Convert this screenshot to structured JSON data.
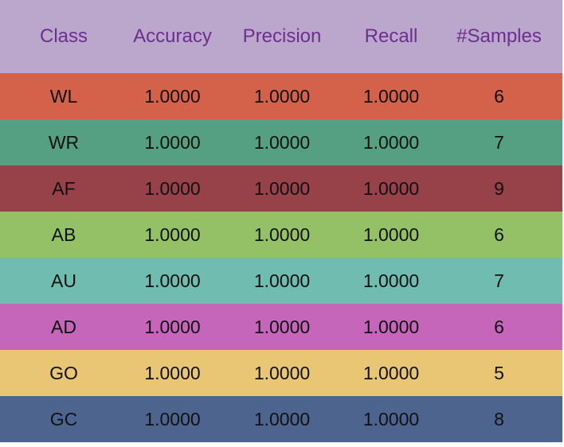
{
  "chart_data": {
    "type": "table",
    "columns": [
      "Class",
      "Accuracy",
      "Precision",
      "Recall",
      "#Samples"
    ],
    "rows": [
      {
        "class": "WL",
        "accuracy": "1.0000",
        "precision": "1.0000",
        "recall": "1.0000",
        "samples": "6",
        "color": "#d4614a"
      },
      {
        "class": "WR",
        "accuracy": "1.0000",
        "precision": "1.0000",
        "recall": "1.0000",
        "samples": "7",
        "color": "#55a083"
      },
      {
        "class": "AF",
        "accuracy": "1.0000",
        "precision": "1.0000",
        "recall": "1.0000",
        "samples": "9",
        "color": "#974149"
      },
      {
        "class": "AB",
        "accuracy": "1.0000",
        "precision": "1.0000",
        "recall": "1.0000",
        "samples": "6",
        "color": "#95c166"
      },
      {
        "class": "AU",
        "accuracy": "1.0000",
        "precision": "1.0000",
        "recall": "1.0000",
        "samples": "7",
        "color": "#71bcb0"
      },
      {
        "class": "AD",
        "accuracy": "1.0000",
        "precision": "1.0000",
        "recall": "1.0000",
        "samples": "6",
        "color": "#c566bb"
      },
      {
        "class": "GO",
        "accuracy": "1.0000",
        "precision": "1.0000",
        "recall": "1.0000",
        "samples": "5",
        "color": "#e8c673"
      },
      {
        "class": "GC",
        "accuracy": "1.0000",
        "precision": "1.0000",
        "recall": "1.0000",
        "samples": "8",
        "color": "#4d648f"
      }
    ],
    "header_background": "#bba6cc",
    "header_text_color": "#6b2f8e"
  }
}
